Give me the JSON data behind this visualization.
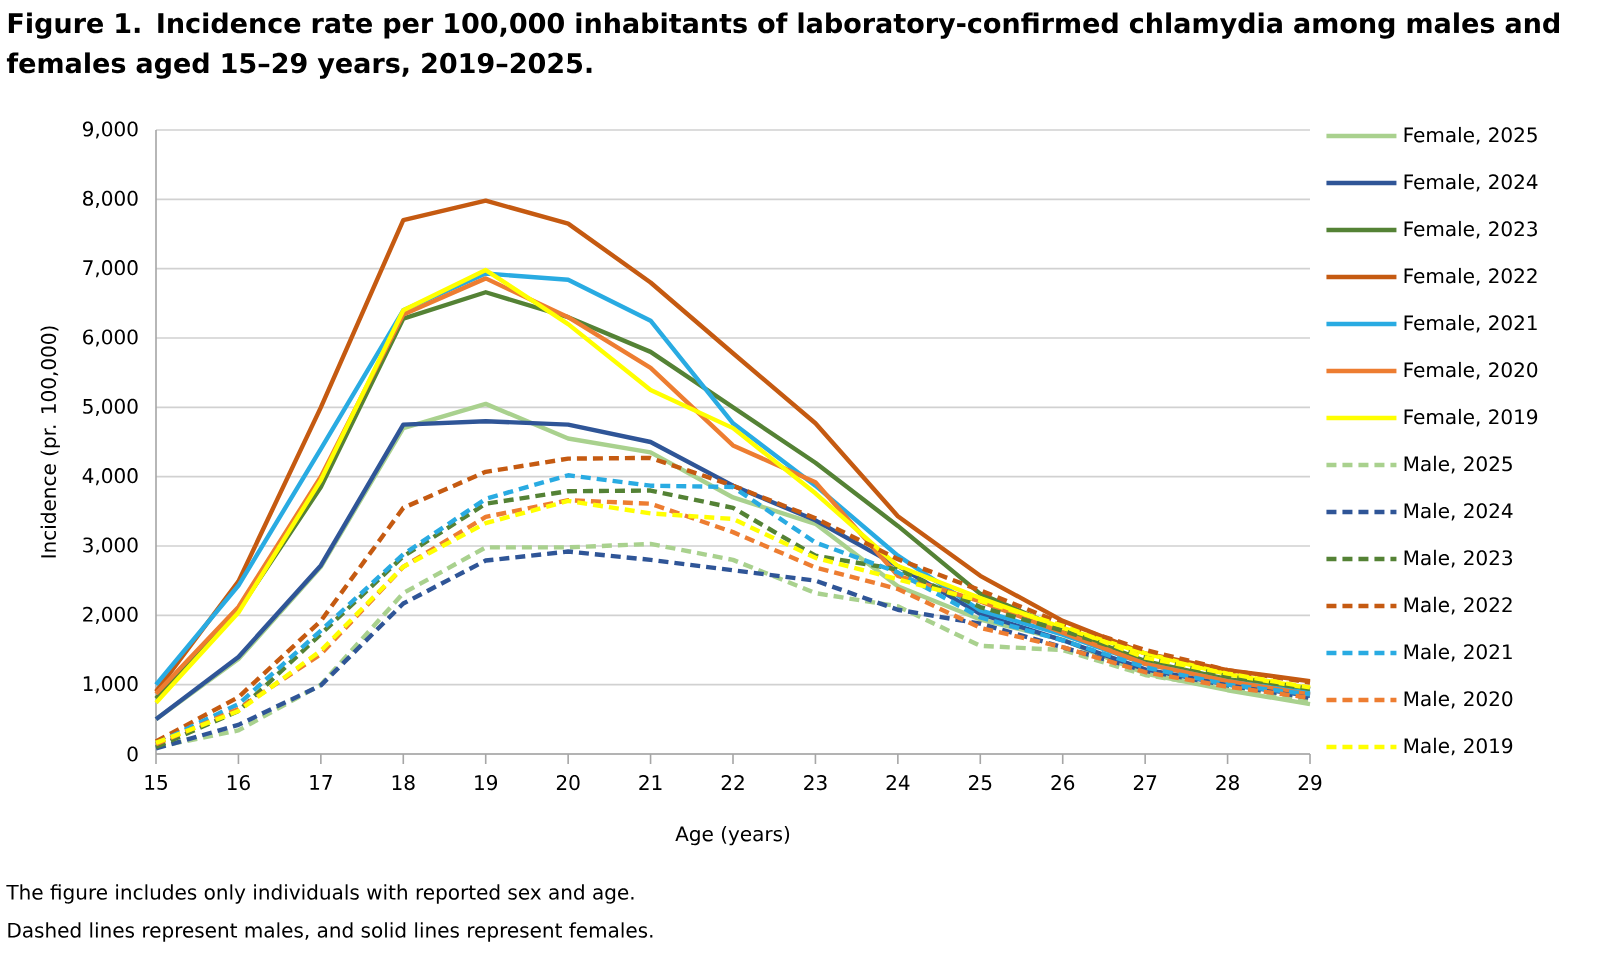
{
  "chart_data": {
    "type": "line",
    "title": "Figure 1. Incidence rate per 100,000 inhabitants of laboratory-confirmed chlamydia among males and females aged 15–29 years, 2019–2025.",
    "xlabel": "Age (years)",
    "ylabel": "Incidence (pr. 100,000)",
    "x": [
      15,
      16,
      17,
      18,
      19,
      20,
      21,
      22,
      23,
      24,
      25,
      26,
      27,
      28,
      29
    ],
    "xlim": [
      15,
      29
    ],
    "xticks": [
      15,
      16,
      17,
      18,
      19,
      20,
      21,
      22,
      23,
      24,
      25,
      26,
      27,
      28,
      29
    ],
    "ylim": [
      0,
      9000
    ],
    "yticks": [
      0,
      {
        "value": 1000,
        "label": "1,000"
      },
      {
        "value": 2000,
        "label": "2,000"
      },
      {
        "value": 3000,
        "label": "3,000"
      },
      {
        "value": 4000,
        "label": "4,000"
      },
      {
        "value": 5000,
        "label": "5,000"
      },
      {
        "value": 6000,
        "label": "6,000"
      },
      {
        "value": 7000,
        "label": "7,000"
      },
      {
        "value": 8000,
        "label": "8,000"
      },
      {
        "value": 9000,
        "label": "9,000"
      }
    ],
    "grid": "y",
    "legend": "right",
    "marker": "none",
    "series": [
      {
        "name": "Female, 2025",
        "color": "#a9d18e",
        "line_style": "solid",
        "values": [
          500,
          1370,
          2700,
          4700,
          5050,
          4550,
          4350,
          3700,
          3320,
          2420,
          1940,
          1650,
          1160,
          920,
          720
        ]
      },
      {
        "name": "Female, 2024",
        "color": "#2f5597",
        "line_style": "solid",
        "values": [
          500,
          1400,
          2720,
          4750,
          4800,
          4750,
          4500,
          3870,
          3370,
          2710,
          2020,
          1640,
          1220,
          1000,
          840
        ]
      },
      {
        "name": "Female, 2023",
        "color": "#548235",
        "line_style": "solid",
        "values": [
          800,
          2070,
          3850,
          6280,
          6660,
          6300,
          5800,
          5000,
          4200,
          3290,
          2310,
          1800,
          1340,
          1080,
          930
        ]
      },
      {
        "name": "Female, 2022",
        "color": "#c55a11",
        "line_style": "solid",
        "values": [
          900,
          2490,
          5000,
          7700,
          7980,
          7650,
          6800,
          5780,
          4770,
          3430,
          2570,
          1920,
          1450,
          1210,
          1050
        ]
      },
      {
        "name": "Female, 2021",
        "color": "#29abe2",
        "line_style": "solid",
        "values": [
          1000,
          2430,
          4400,
          6400,
          6930,
          6840,
          6250,
          4770,
          3870,
          2860,
          2070,
          1720,
          1300,
          1050,
          880
        ]
      },
      {
        "name": "Female, 2020",
        "color": "#ed7d31",
        "line_style": "solid",
        "values": [
          870,
          2120,
          4000,
          6340,
          6860,
          6300,
          5570,
          4450,
          3920,
          2570,
          2200,
          1750,
          1300,
          1050,
          860
        ]
      },
      {
        "name": "Female, 2019",
        "color": "#ffff00",
        "line_style": "solid",
        "values": [
          740,
          2040,
          3950,
          6400,
          6980,
          6200,
          5250,
          4700,
          3760,
          2710,
          2250,
          1820,
          1450,
          1150,
          950
        ]
      },
      {
        "name": "Male, 2025",
        "color": "#a9d18e",
        "line_style": "dashed",
        "values": [
          100,
          340,
          1000,
          2320,
          2980,
          2980,
          3030,
          2800,
          2320,
          2130,
          1560,
          1500,
          1140,
          950,
          770
        ]
      },
      {
        "name": "Male, 2024",
        "color": "#2f5597",
        "line_style": "dashed",
        "values": [
          80,
          420,
          990,
          2170,
          2790,
          2920,
          2800,
          2650,
          2500,
          2080,
          1880,
          1540,
          1200,
          990,
          810
        ]
      },
      {
        "name": "Male, 2023",
        "color": "#548235",
        "line_style": "dashed",
        "values": [
          100,
          620,
          1730,
          2850,
          3610,
          3790,
          3800,
          3550,
          2860,
          2660,
          2120,
          1780,
          1390,
          1120,
          940
        ]
      },
      {
        "name": "Male, 2022",
        "color": "#c55a11",
        "line_style": "dashed",
        "values": [
          180,
          820,
          1920,
          3550,
          4070,
          4260,
          4270,
          3870,
          3400,
          2810,
          2360,
          1880,
          1500,
          1210,
          1030
        ]
      },
      {
        "name": "Male, 2021",
        "color": "#29abe2",
        "line_style": "dashed",
        "values": [
          150,
          720,
          1780,
          2880,
          3680,
          4020,
          3870,
          3850,
          3050,
          2620,
          1970,
          1640,
          1250,
          1000,
          860
        ]
      },
      {
        "name": "Male, 2020",
        "color": "#ed7d31",
        "line_style": "dashed",
        "values": [
          140,
          650,
          1440,
          2700,
          3420,
          3660,
          3610,
          3200,
          2690,
          2380,
          1820,
          1540,
          1180,
          970,
          810
        ]
      },
      {
        "name": "Male, 2019",
        "color": "#ffff00",
        "line_style": "dashed",
        "values": [
          160,
          620,
          1490,
          2700,
          3330,
          3650,
          3470,
          3390,
          2830,
          2520,
          2210,
          1850,
          1390,
          1160,
          960
        ]
      }
    ],
    "annotations": [
      "The figure includes only individuals with reported sex and age.",
      "Dashed lines represent males, and solid lines represent females."
    ]
  }
}
